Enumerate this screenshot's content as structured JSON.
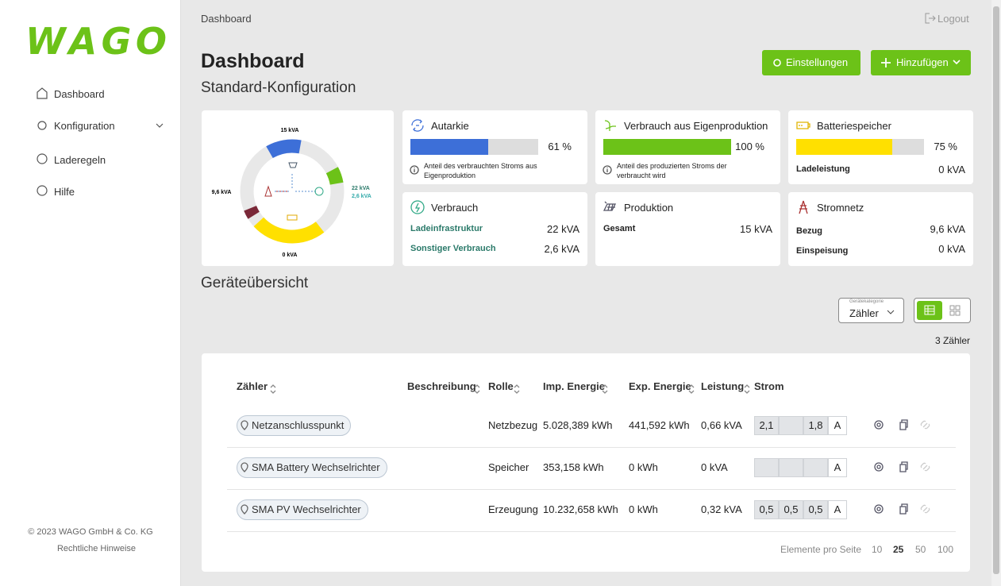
{
  "sidebar": {
    "logo": "WAGO",
    "nav": [
      "Dashboard",
      "Konfiguration",
      "Laderegeln",
      "Hilfe"
    ],
    "footer": {
      "copyright": "© 2023 WAGO GmbH & Co. KG",
      "legal": "Rechtliche Hinweise"
    }
  },
  "header": {
    "breadcrumb": "Dashboard",
    "logout": "Logout",
    "title": "Dashboard",
    "subtitle": "Standard-Konfiguration",
    "buttons": [
      "Einstellungen",
      "Hinzufügen"
    ]
  },
  "overview": {
    "top": "15 kVA",
    "left": "9,6 kVA",
    "right": [
      "22 kVA",
      "2,6 kVA"
    ],
    "bottom": "0 kVA"
  },
  "cards": [
    {
      "title": "Autarkie",
      "progress": 61,
      "progress_label": "61 %",
      "color": "#3d6fd8",
      "note": "Anteil des verbrauchten Stroms aus Eigenproduktion"
    },
    {
      "title": "Verbrauch aus Eigenproduktion",
      "progress": 100,
      "progress_label": "100 %",
      "color": "#6cc218",
      "note": "Anteil des produzierten Stroms der verbraucht wird"
    },
    {
      "title": "Batteriespeicher",
      "progress": 75,
      "progress_label": "75 %",
      "color": "#ffe000",
      "rows": [
        [
          "Ladeleistung",
          "0 kVA"
        ]
      ]
    },
    {
      "title": "Verbrauch",
      "rows": [
        [
          "Ladeinfrastruktur",
          "22 kVA"
        ],
        [
          "Sonstiger Verbrauch",
          "2,6 kVA"
        ]
      ]
    },
    {
      "title": "Produktion",
      "rows": [
        [
          "Gesamt",
          "15 kVA"
        ]
      ]
    },
    {
      "title": "Stromnetz",
      "rows": [
        [
          "Bezug",
          "9,6 kVA"
        ],
        [
          "Einspeisung",
          "0 kVA"
        ]
      ]
    }
  ],
  "devices": {
    "title": "Geräteübersicht",
    "filter_label": "Gerätekategorie",
    "filter_value": "Zähler",
    "count": "3 Zähler",
    "columns": [
      "Zähler",
      "Beschreibung",
      "Rolle",
      "Imp. Energie",
      "Exp. Energie",
      "Leistung",
      "Strom"
    ],
    "rows": [
      {
        "name": "Netzanschlusspunkt",
        "role": "Netzbezug",
        "imp": "5.028,389 kWh",
        "exp": "441,592 kWh",
        "power": "0,66 kVA",
        "current": [
          "2,1",
          null,
          "1,8"
        ],
        "unit": "A"
      },
      {
        "name": "SMA Battery Wechselrichter",
        "role": "Speicher",
        "imp": "353,158 kWh",
        "exp": "0 kWh",
        "power": "0 kVA",
        "current": [
          null,
          null,
          null
        ],
        "unit": "A"
      },
      {
        "name": "SMA PV Wechselrichter",
        "role": "Erzeugung",
        "imp": "10.232,658 kWh",
        "exp": "0 kWh",
        "power": "0,32 kVA",
        "current": [
          "0,5",
          "0,5",
          "0,5"
        ],
        "unit": "A"
      }
    ],
    "pagination": {
      "label": "Elemente pro Seite",
      "sizes": [
        10,
        25,
        50,
        100
      ],
      "selected": 25
    }
  }
}
